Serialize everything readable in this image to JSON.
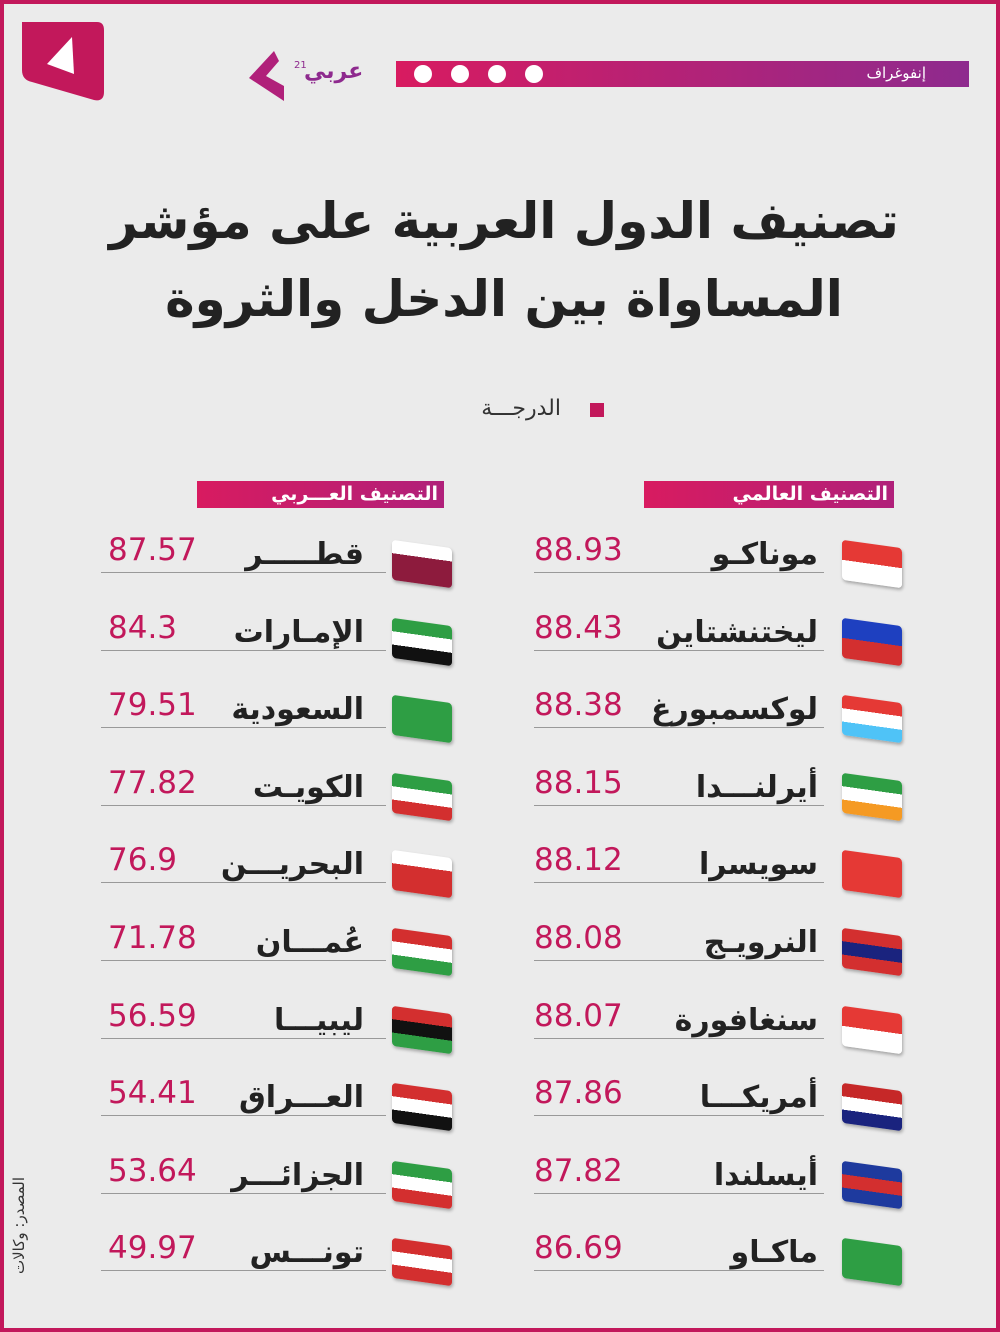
{
  "header": {
    "section": "إنفوغراف",
    "logo": "عربي",
    "logo_number": "21"
  },
  "title": [
    "تصنيف الدول العربية على مؤشر",
    "المساواة بين الدخل والثروة"
  ],
  "legend": "الدرجـــة",
  "world": {
    "heading": "التصنيف العالمي",
    "rows": [
      [
        "موناكـو",
        88.93
      ],
      [
        "ليختنشتاين",
        88.43
      ],
      [
        "لوكسمبورغ",
        88.38
      ],
      [
        "أيرلنـــدا",
        88.15
      ],
      [
        "سويسرا",
        88.12
      ],
      [
        "النرويـج",
        88.08
      ],
      [
        "سنغافورة",
        88.07
      ],
      [
        "أمريكـــا",
        87.86
      ],
      [
        "أيسلندا",
        87.82
      ],
      [
        "ماكـاو",
        86.69
      ]
    ]
  },
  "arab": {
    "heading": "التصنيف العـــربي",
    "rows": [
      [
        "قطـــــر",
        87.57
      ],
      [
        "الإمـارات",
        84.3
      ],
      [
        "السعودية",
        79.51
      ],
      [
        "الكويـت",
        77.82
      ],
      [
        "البحريـــن",
        76.9
      ],
      [
        "عُمـــان",
        71.78
      ],
      [
        "ليبيـــا",
        56.59
      ],
      [
        "العـــراق",
        54.41
      ],
      [
        "الجزائـــر",
        53.64
      ],
      [
        "تونـــس",
        49.97
      ]
    ]
  },
  "source": "المصدر: وكالات"
}
